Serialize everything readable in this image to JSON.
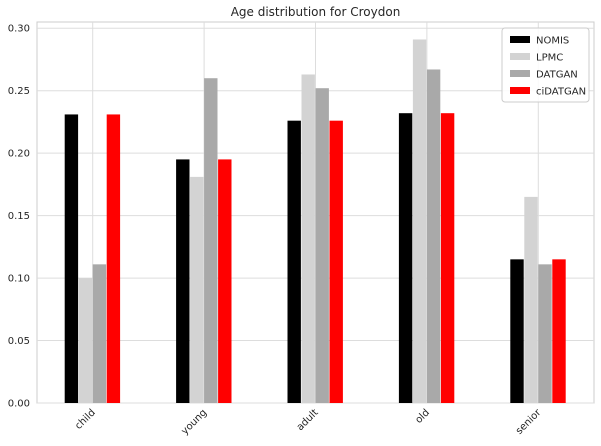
{
  "chart_data": {
    "type": "bar",
    "title": "Age distribution for Croydon",
    "xlabel": "",
    "ylabel": "",
    "categories": [
      "child",
      "young",
      "adult",
      "old",
      "senior"
    ],
    "series": [
      {
        "name": "NOMIS",
        "color": "#000000",
        "values": [
          0.231,
          0.195,
          0.226,
          0.232,
          0.115
        ]
      },
      {
        "name": "LPMC",
        "color": "#d3d3d3",
        "values": [
          0.1,
          0.181,
          0.263,
          0.291,
          0.165
        ]
      },
      {
        "name": "DATGAN",
        "color": "#a9a9a9",
        "values": [
          0.111,
          0.26,
          0.252,
          0.267,
          0.111
        ]
      },
      {
        "name": "ciDATGAN",
        "color": "#ff0000",
        "values": [
          0.231,
          0.195,
          0.226,
          0.232,
          0.115
        ]
      }
    ],
    "ylim": [
      0,
      0.305
    ],
    "yticks": [
      "0.00",
      "0.05",
      "0.10",
      "0.15",
      "0.20",
      "0.25",
      "0.30"
    ],
    "grid": true,
    "legend_position": "top-right"
  }
}
